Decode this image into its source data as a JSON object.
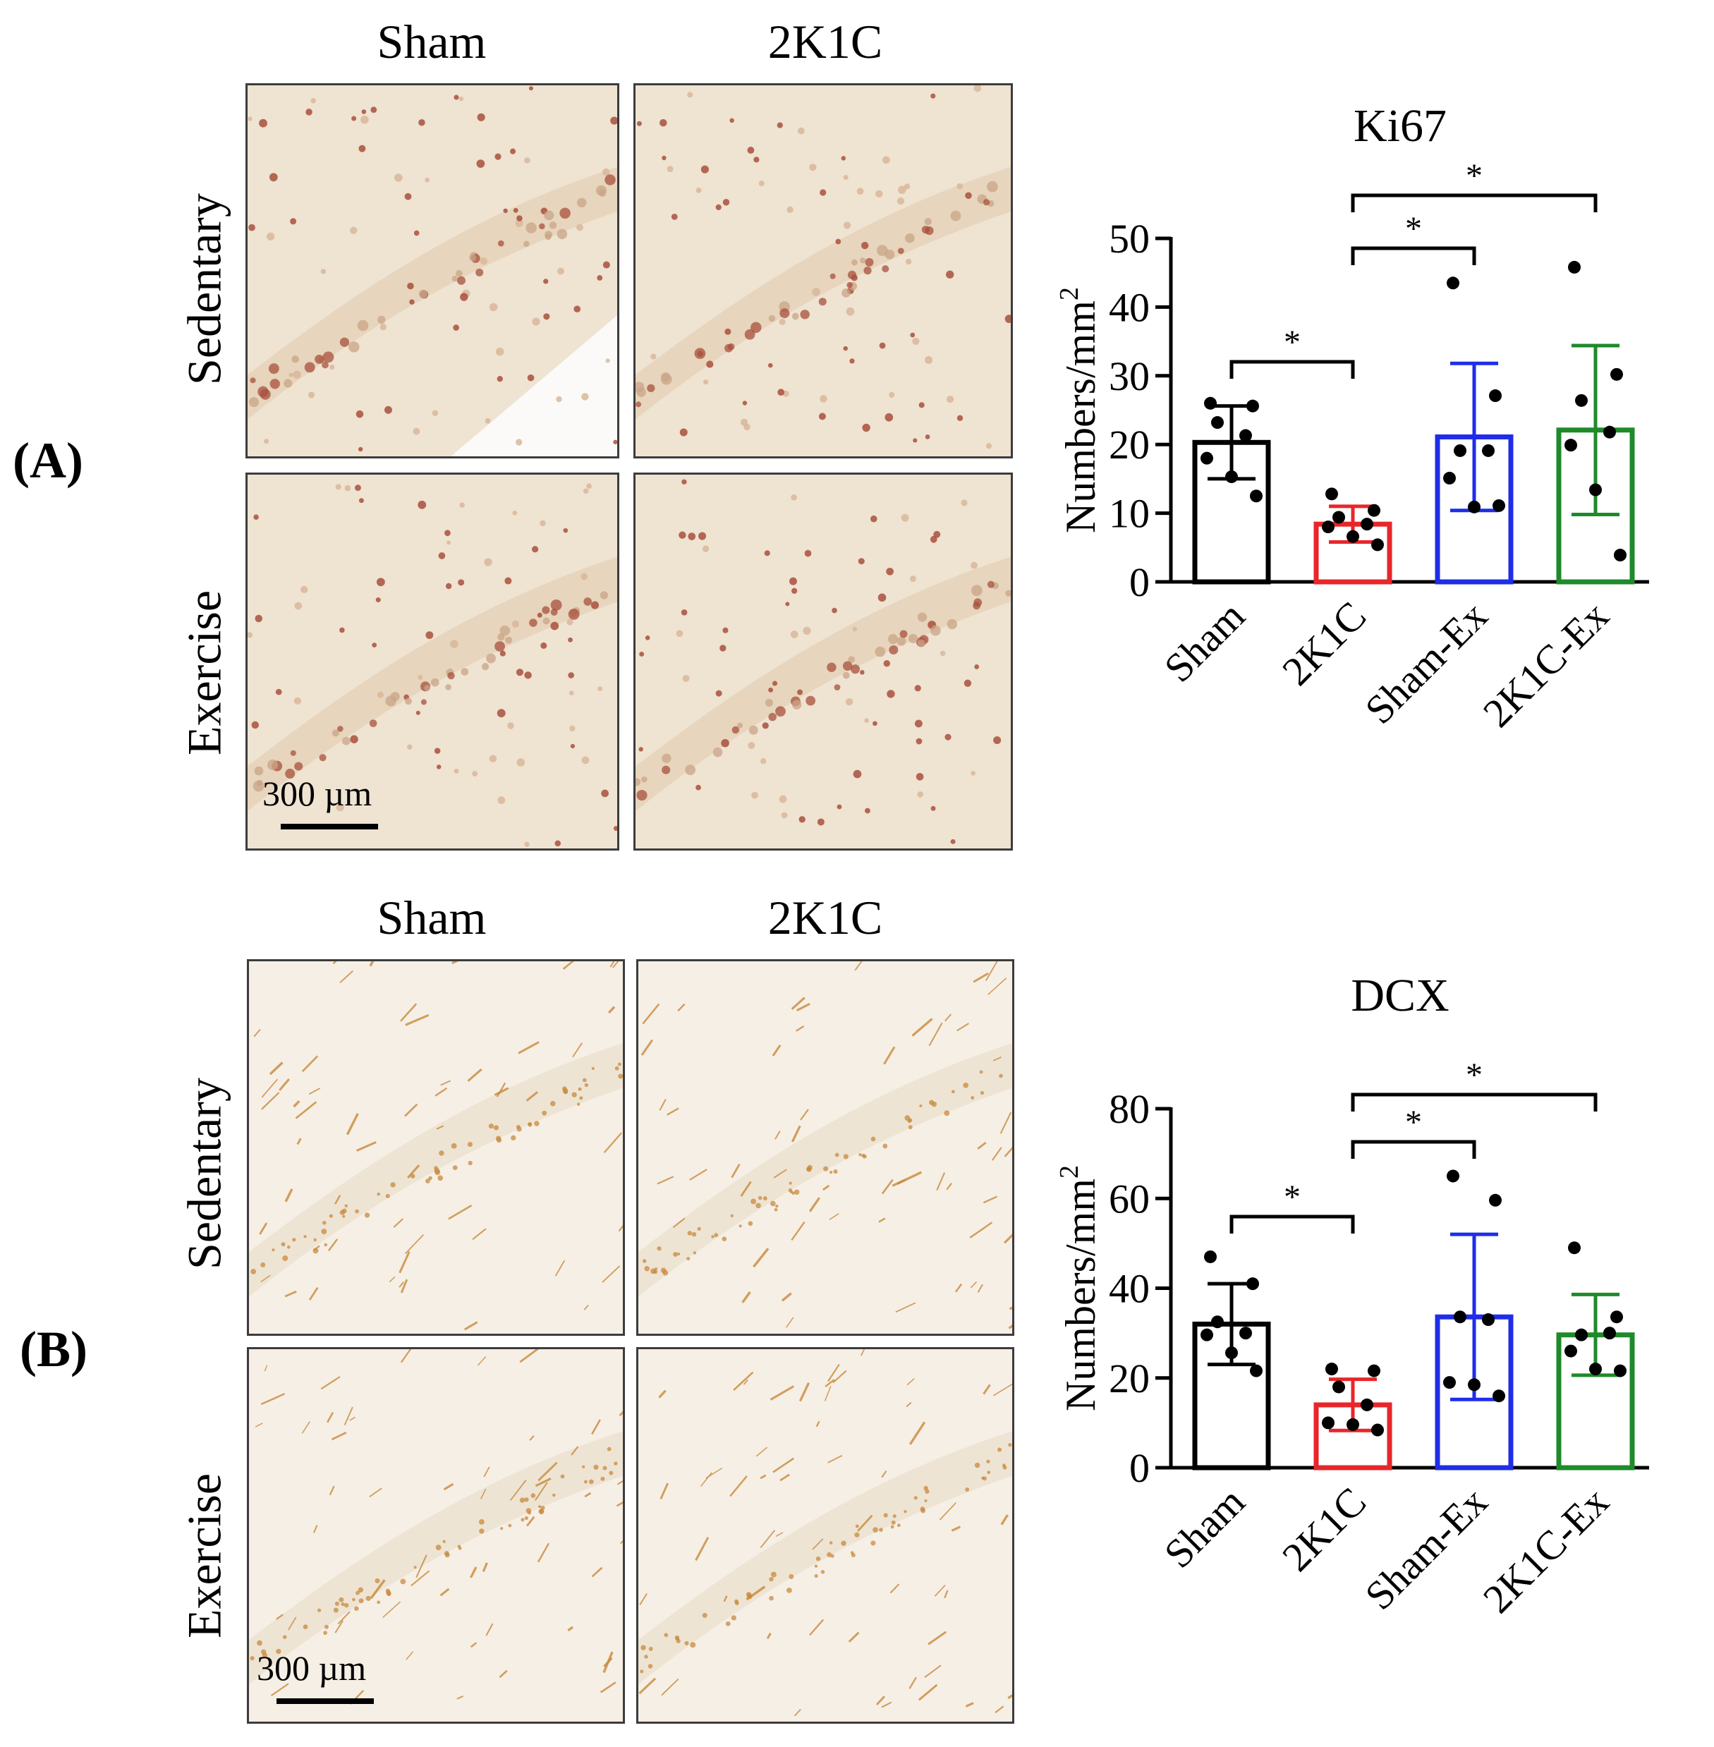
{
  "panels": [
    {
      "id": "A",
      "label": "(A)",
      "column_headers": [
        "Sham",
        "2K1C"
      ],
      "row_headers": [
        "Sedentary",
        "Exercise"
      ],
      "scale_bar": "300 µm",
      "stain_color": "#a8503c"
    },
    {
      "id": "B",
      "label": "(B)",
      "column_headers": [
        "Sham",
        "2K1C"
      ],
      "row_headers": [
        "Sedentary",
        "Exercise"
      ],
      "scale_bar": "300 µm",
      "stain_color": "#c88a3c"
    }
  ],
  "chart_data": [
    {
      "type": "bar",
      "title": "Ki67",
      "ylabel": "Numbers/mm",
      "ylabel_superscript": "2",
      "xlabel": "",
      "ylim": [
        0,
        50
      ],
      "yticks": [
        0,
        10,
        20,
        30,
        40,
        50
      ],
      "categories": [
        "Sham",
        "2K1C",
        "Sham-Ex",
        "2K1C-Ex"
      ],
      "colors": [
        "#000000",
        "#e8262a",
        "#1f2de8",
        "#1f8a2a"
      ],
      "values": [
        20.3,
        8.4,
        21.1,
        22.1
      ],
      "error_sd": [
        5.3,
        2.6,
        10.7,
        12.3
      ],
      "points": [
        [
          26,
          25.6,
          23.2,
          21.3,
          18,
          15.3,
          12.5
        ],
        [
          12.8,
          10.4,
          9.4,
          8.4,
          8,
          6.6,
          5.4
        ],
        [
          43.5,
          27.1,
          19.1,
          19.1,
          15.1,
          10.9,
          11.1
        ],
        [
          45.8,
          30.2,
          26.4,
          21.8,
          19.9,
          13.4,
          3.9
        ]
      ],
      "significance": [
        {
          "from": 0,
          "to": 1,
          "label": "*"
        },
        {
          "from": 1,
          "to": 2,
          "label": "*"
        },
        {
          "from": 1,
          "to": 3,
          "label": "*"
        }
      ]
    },
    {
      "type": "bar",
      "title": "DCX",
      "ylabel": "Numbers/mm",
      "ylabel_superscript": "2",
      "xlabel": "",
      "ylim": [
        0,
        80
      ],
      "yticks": [
        0,
        20,
        40,
        60,
        80
      ],
      "categories": [
        "Sham",
        "2K1C",
        "Sham-Ex",
        "2K1C-Ex"
      ],
      "colors": [
        "#000000",
        "#e8262a",
        "#1f2de8",
        "#1f8a2a"
      ],
      "values": [
        32,
        14,
        33.6,
        29.6
      ],
      "error_sd": [
        9,
        5.7,
        18.4,
        9
      ],
      "points": [
        [
          47,
          41,
          32.5,
          30,
          29.6,
          25.6,
          21.6
        ],
        [
          22,
          21.6,
          18,
          14,
          10,
          9.6,
          8.4
        ],
        [
          65,
          59.6,
          33.6,
          33,
          19,
          18.5,
          16
        ],
        [
          49,
          33.6,
          29.6,
          30,
          26,
          22,
          21.6
        ]
      ],
      "significance": [
        {
          "from": 0,
          "to": 1,
          "label": "*"
        },
        {
          "from": 1,
          "to": 2,
          "label": "*"
        },
        {
          "from": 1,
          "to": 3,
          "label": "*"
        }
      ]
    }
  ]
}
